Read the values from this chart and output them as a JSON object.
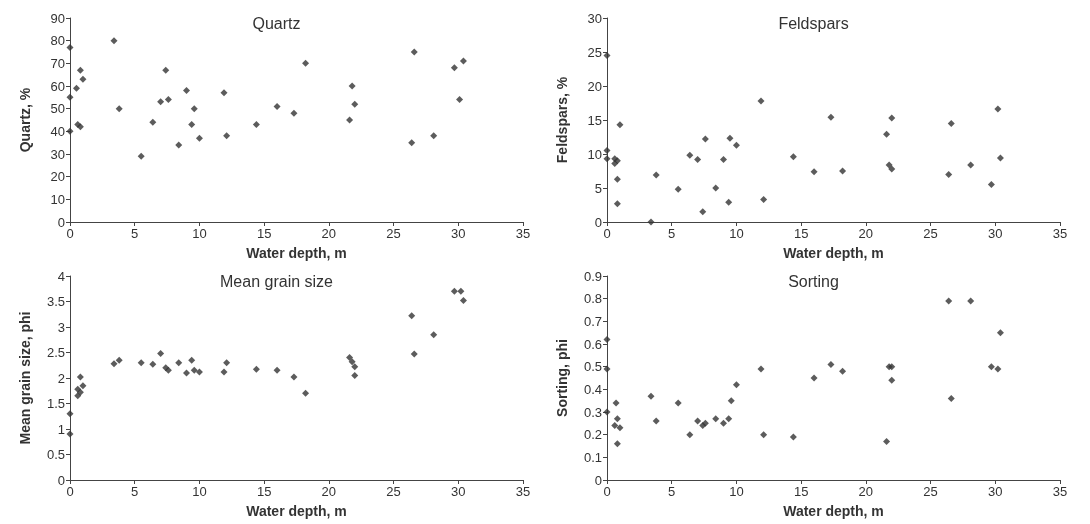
{
  "chart_data": [
    {
      "type": "scatter",
      "title": "Quartz",
      "xlabel": "Water depth, m",
      "ylabel": "Quartz, %",
      "marker": "diamond",
      "grid": false,
      "xlim": [
        0,
        35
      ],
      "xticks": [
        0,
        5,
        10,
        15,
        20,
        25,
        30,
        35
      ],
      "ylim": [
        0,
        90
      ],
      "yticks": [
        0,
        10,
        20,
        30,
        40,
        50,
        60,
        70,
        80,
        90
      ],
      "series": [
        {
          "color": "#333333",
          "x": [
            0,
            0,
            0,
            0.5,
            0.6,
            0.8,
            0.8,
            1,
            3.4,
            3.8,
            5.5,
            6.4,
            7,
            7.4,
            7.6,
            8.4,
            9,
            9.4,
            9.6,
            10,
            11.9,
            12.1,
            14.4,
            16,
            17.3,
            18.2,
            21.6,
            21.8,
            22,
            26.4,
            26.6,
            28.1,
            29.7,
            30.1,
            30.4
          ],
          "values": [
            77,
            55,
            40,
            59,
            43,
            42,
            67,
            63,
            80,
            50,
            29,
            44,
            53,
            67,
            54,
            34,
            58,
            43,
            50,
            37,
            57,
            38,
            43,
            51,
            48,
            70,
            45,
            60,
            52,
            35,
            75,
            38,
            68,
            54,
            71
          ]
        }
      ]
    },
    {
      "type": "scatter",
      "title": "Feldspars",
      "xlabel": "Water depth, m",
      "ylabel": "Feldspars, %",
      "marker": "diamond",
      "grid": false,
      "xlim": [
        0,
        35
      ],
      "xticks": [
        0,
        5,
        10,
        15,
        20,
        25,
        30,
        35
      ],
      "ylim": [
        0,
        30
      ],
      "yticks": [
        0,
        5,
        10,
        15,
        20,
        25,
        30
      ],
      "series": [
        {
          "color": "#333333",
          "x": [
            0,
            0,
            0,
            0.6,
            0.6,
            0.8,
            0.8,
            0.8,
            1,
            3.4,
            3.8,
            5.5,
            6.4,
            7,
            7.4,
            7.6,
            8.4,
            9,
            9.4,
            9.5,
            10,
            11.9,
            12.1,
            14.4,
            16,
            17.3,
            18.2,
            21.6,
            21.8,
            22,
            22,
            26.4,
            26.6,
            28.1,
            29.7,
            30.2,
            30.4
          ],
          "values": [
            24.5,
            10.5,
            9.3,
            9.3,
            8.6,
            9,
            6.3,
            2.7,
            14.3,
            0,
            6.9,
            4.8,
            9.8,
            9.2,
            1.5,
            12.2,
            5,
            9.2,
            2.9,
            12.3,
            11.3,
            17.8,
            3.3,
            9.6,
            7.4,
            15.4,
            7.5,
            12.9,
            8.4,
            7.8,
            15.3,
            7,
            14.5,
            8.4,
            5.5,
            16.6,
            9.4
          ]
        }
      ]
    },
    {
      "type": "scatter",
      "title": "Mean grain size",
      "xlabel": "Water depth, m",
      "ylabel": "Mean grain size, phi",
      "marker": "diamond",
      "grid": false,
      "xlim": [
        0,
        35
      ],
      "xticks": [
        0,
        5,
        10,
        15,
        20,
        25,
        30,
        35
      ],
      "ylim": [
        0,
        4
      ],
      "yticks": [
        0,
        0.5,
        1,
        1.5,
        2,
        2.5,
        3,
        3.5,
        4
      ],
      "series": [
        {
          "color": "#333333",
          "x": [
            0,
            0,
            0.6,
            0.6,
            0.8,
            0.8,
            1,
            3.4,
            3.8,
            5.5,
            6.4,
            7,
            7.4,
            7.6,
            8.4,
            9,
            9.4,
            9.6,
            10,
            11.9,
            12.1,
            14.4,
            16,
            17.3,
            18.2,
            21.6,
            21.8,
            22,
            22,
            26.4,
            26.6,
            28.1,
            29.7,
            30.2,
            30.4
          ],
          "values": [
            1.3,
            0.9,
            1.65,
            1.78,
            1.72,
            2.02,
            1.85,
            2.28,
            2.35,
            2.3,
            2.27,
            2.48,
            2.2,
            2.15,
            2.3,
            2.1,
            2.35,
            2.15,
            2.12,
            2.12,
            2.3,
            2.17,
            2.15,
            2.02,
            1.7,
            2.4,
            2.32,
            2.22,
            2.05,
            3.22,
            2.47,
            2.85,
            3.7,
            3.7,
            3.52
          ]
        }
      ]
    },
    {
      "type": "scatter",
      "title": "Sorting",
      "xlabel": "Water depth, m",
      "ylabel": "Sorting, phi",
      "marker": "diamond",
      "grid": false,
      "xlim": [
        0,
        35
      ],
      "xticks": [
        0,
        5,
        10,
        15,
        20,
        25,
        30,
        35
      ],
      "ylim": [
        0,
        0.9
      ],
      "yticks": [
        0,
        0.1,
        0.2,
        0.3,
        0.4,
        0.5,
        0.6,
        0.7,
        0.8,
        0.9
      ],
      "series": [
        {
          "color": "#333333",
          "x": [
            0,
            0,
            0,
            0.6,
            0.7,
            0.8,
            0.8,
            1,
            3.4,
            3.8,
            5.5,
            6.4,
            7,
            7.4,
            7.6,
            8.4,
            9,
            9.4,
            9.6,
            10,
            11.9,
            12.1,
            14.4,
            16,
            17.3,
            18.2,
            21.6,
            21.8,
            22,
            22,
            26.4,
            26.6,
            28.1,
            29.7,
            30.2,
            30.4
          ],
          "values": [
            0.62,
            0.49,
            0.3,
            0.24,
            0.34,
            0.27,
            0.16,
            0.23,
            0.37,
            0.26,
            0.34,
            0.2,
            0.26,
            0.24,
            0.25,
            0.27,
            0.25,
            0.27,
            0.35,
            0.42,
            0.49,
            0.2,
            0.19,
            0.45,
            0.51,
            0.48,
            0.17,
            0.5,
            0.5,
            0.44,
            0.79,
            0.36,
            0.79,
            0.5,
            0.49,
            0.65
          ]
        }
      ]
    }
  ]
}
